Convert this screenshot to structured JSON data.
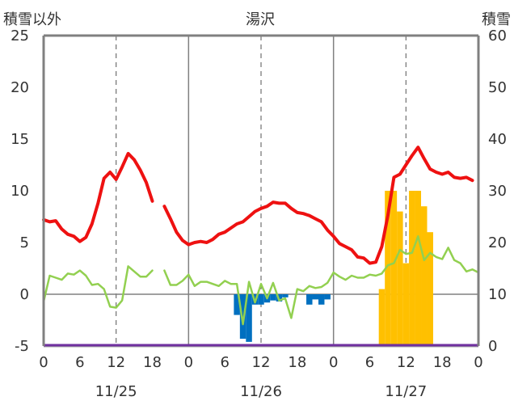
{
  "chart_data": {
    "type": "line",
    "title": "湯沢",
    "left_axis_label": "積雪以外",
    "right_axis_label": "積雪",
    "left_ylim": [
      -5,
      25
    ],
    "left_ticks": [
      "-5",
      "0",
      "5",
      "10",
      "15",
      "20",
      "25"
    ],
    "right_ylim": [
      0,
      60
    ],
    "right_ticks": [
      "0",
      "10",
      "20",
      "30",
      "40",
      "50",
      "60"
    ],
    "x_range_hours": [
      0,
      72
    ],
    "x_ticks": [
      "0",
      "6",
      "12",
      "18",
      "0",
      "6",
      "12",
      "18",
      "0",
      "6",
      "12",
      "18",
      "0"
    ],
    "date_labels": [
      {
        "label": "11/25",
        "hour": 12
      },
      {
        "label": "11/26",
        "hour": 36
      },
      {
        "label": "11/27",
        "hour": 60
      }
    ],
    "grid": "dashed vertical at 12h, solid vertical at day boundaries",
    "colors": {
      "temperature": "#ee1111",
      "green_series": "#92d050",
      "blue_bars": "#0070c0",
      "orange_bars": "#ffc000",
      "purple_baseline": "#7030a0",
      "axis": "#808080"
    },
    "series": [
      {
        "axis": "left",
        "type": "line",
        "color": "#ee1111",
        "segments": [
          [
            [
              0,
              7.2
            ],
            [
              1,
              7.0
            ],
            [
              2,
              7.1
            ],
            [
              3,
              6.3
            ],
            [
              4,
              5.8
            ],
            [
              5,
              5.6
            ],
            [
              6,
              5.1
            ],
            [
              7,
              5.5
            ],
            [
              8,
              6.8
            ],
            [
              9,
              8.8
            ],
            [
              10,
              11.2
            ],
            [
              11,
              11.8
            ],
            [
              12,
              11.1
            ],
            [
              13,
              12.3
            ],
            [
              14,
              13.6
            ],
            [
              15,
              13.0
            ],
            [
              16,
              12.0
            ],
            [
              17,
              10.8
            ],
            [
              18,
              9.0
            ]
          ],
          [
            [
              20,
              8.5
            ],
            [
              21,
              7.3
            ],
            [
              22,
              6.0
            ],
            [
              23,
              5.2
            ],
            [
              24,
              4.8
            ],
            [
              25,
              5.0
            ],
            [
              26,
              5.1
            ],
            [
              27,
              5.0
            ],
            [
              28,
              5.3
            ],
            [
              29,
              5.8
            ],
            [
              30,
              6.0
            ],
            [
              31,
              6.4
            ],
            [
              32,
              6.8
            ],
            [
              33,
              7.0
            ],
            [
              34,
              7.5
            ],
            [
              35,
              8.0
            ],
            [
              36,
              8.3
            ],
            [
              37,
              8.5
            ],
            [
              38,
              8.9
            ],
            [
              39,
              8.8
            ],
            [
              40,
              8.8
            ],
            [
              41,
              8.3
            ],
            [
              42,
              7.9
            ],
            [
              43,
              7.8
            ],
            [
              44,
              7.6
            ],
            [
              45,
              7.3
            ],
            [
              46,
              7.0
            ],
            [
              47,
              6.2
            ],
            [
              48,
              5.6
            ],
            [
              49,
              4.9
            ],
            [
              50,
              4.6
            ],
            [
              51,
              4.3
            ],
            [
              52,
              3.6
            ],
            [
              53,
              3.5
            ],
            [
              54,
              3.0
            ],
            [
              55,
              3.1
            ],
            [
              56,
              4.6
            ],
            [
              57,
              7.6
            ],
            [
              58,
              11.3
            ],
            [
              59,
              11.6
            ],
            [
              60,
              12.5
            ],
            [
              61,
              13.4
            ],
            [
              62,
              14.2
            ],
            [
              63,
              13.1
            ],
            [
              64,
              12.1
            ],
            [
              65,
              11.8
            ],
            [
              66,
              11.6
            ],
            [
              67,
              11.8
            ],
            [
              68,
              11.3
            ],
            [
              69,
              11.2
            ],
            [
              70,
              11.3
            ],
            [
              71,
              11.0
            ]
          ]
        ]
      },
      {
        "axis": "left",
        "type": "line",
        "color": "#92d050",
        "segments": [
          [
            [
              0,
              -0.7
            ],
            [
              1,
              1.8
            ],
            [
              2,
              1.6
            ],
            [
              3,
              1.4
            ],
            [
              4,
              2.0
            ],
            [
              5,
              1.9
            ],
            [
              6,
              2.3
            ],
            [
              7,
              1.8
            ],
            [
              8,
              0.9
            ],
            [
              9,
              1.0
            ],
            [
              10,
              0.5
            ],
            [
              11,
              -1.2
            ],
            [
              12,
              -1.3
            ],
            [
              13,
              -0.6
            ],
            [
              14,
              2.7
            ],
            [
              15,
              2.2
            ],
            [
              16,
              1.7
            ],
            [
              17,
              1.7
            ],
            [
              18,
              2.3
            ]
          ],
          [
            [
              20,
              2.3
            ],
            [
              21,
              0.9
            ],
            [
              22,
              0.9
            ],
            [
              23,
              1.3
            ],
            [
              24,
              1.9
            ],
            [
              25,
              0.8
            ],
            [
              26,
              1.2
            ],
            [
              27,
              1.2
            ],
            [
              28,
              1.0
            ],
            [
              29,
              0.8
            ],
            [
              30,
              1.3
            ],
            [
              31,
              1.0
            ],
            [
              32,
              1.0
            ],
            [
              33,
              -2.9
            ],
            [
              34,
              1.2
            ],
            [
              35,
              -0.8
            ],
            [
              36,
              1.0
            ],
            [
              37,
              -0.4
            ],
            [
              38,
              1.1
            ],
            [
              39,
              -0.6
            ],
            [
              40,
              -0.4
            ],
            [
              41,
              -2.3
            ],
            [
              42,
              0.5
            ],
            [
              43,
              0.3
            ],
            [
              44,
              0.8
            ],
            [
              45,
              0.6
            ],
            [
              46,
              0.7
            ],
            [
              47,
              1.1
            ],
            [
              48,
              2.1
            ],
            [
              49,
              1.7
            ],
            [
              50,
              1.4
            ],
            [
              51,
              1.8
            ],
            [
              52,
              1.6
            ],
            [
              53,
              1.6
            ],
            [
              54,
              1.9
            ],
            [
              55,
              1.8
            ],
            [
              56,
              2.0
            ],
            [
              57,
              2.8
            ],
            [
              58,
              3.0
            ],
            [
              59,
              4.3
            ],
            [
              60,
              3.9
            ],
            [
              61,
              4.0
            ],
            [
              62,
              5.6
            ],
            [
              63,
              3.3
            ],
            [
              64,
              4.0
            ],
            [
              65,
              3.6
            ],
            [
              66,
              3.4
            ],
            [
              67,
              4.5
            ],
            [
              68,
              3.3
            ],
            [
              69,
              3.0
            ],
            [
              70,
              2.2
            ],
            [
              71,
              2.4
            ],
            [
              72,
              2.1
            ]
          ]
        ]
      },
      {
        "axis": "left",
        "type": "bar",
        "color": "#0070c0",
        "points": [
          [
            32,
            -2.0
          ],
          [
            33,
            -4.3
          ],
          [
            34,
            -4.6
          ],
          [
            35,
            -1.0
          ],
          [
            36,
            -1.0
          ],
          [
            37,
            -0.8
          ],
          [
            38,
            -0.6
          ],
          [
            39,
            -0.7
          ],
          [
            40,
            -0.3
          ],
          [
            41,
            0
          ],
          [
            42,
            0
          ],
          [
            43,
            0
          ],
          [
            44,
            -1.0
          ],
          [
            45,
            -0.5
          ],
          [
            46,
            -1.0
          ],
          [
            47,
            -0.5
          ]
        ]
      },
      {
        "axis": "right",
        "type": "bar",
        "color": "#ffc000",
        "points": [
          [
            56,
            11
          ],
          [
            57,
            30
          ],
          [
            58,
            30
          ],
          [
            59,
            26
          ],
          [
            60,
            16
          ],
          [
            61,
            30
          ],
          [
            62,
            30
          ],
          [
            63,
            27
          ],
          [
            64,
            22
          ]
        ]
      }
    ],
    "baseline": {
      "axis": "left",
      "value": -5,
      "color": "#7030a0"
    }
  }
}
